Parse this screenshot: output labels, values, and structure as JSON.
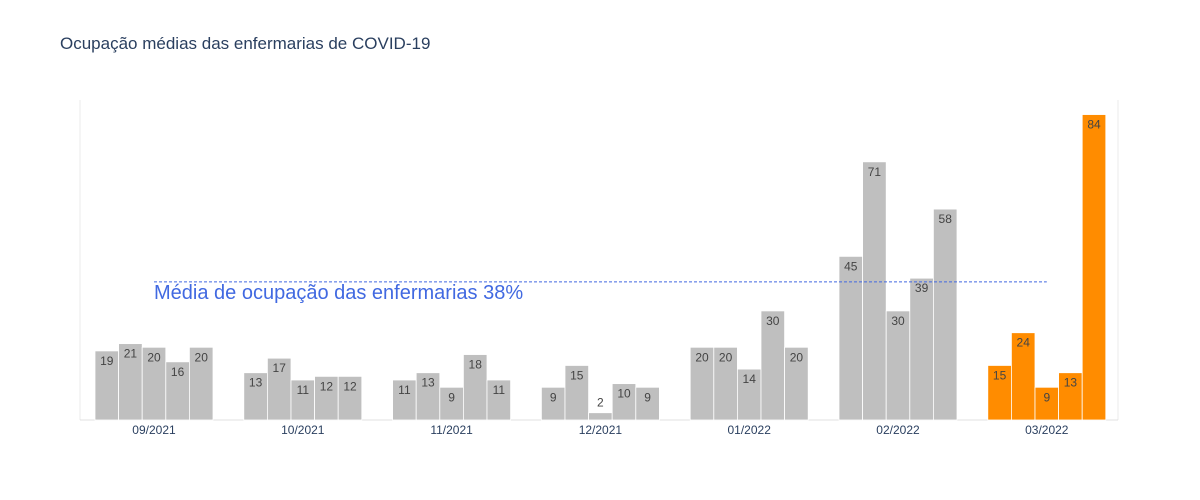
{
  "chart_data": {
    "type": "bar",
    "title": "Ocupação médias das enfermarias de COVID-19",
    "xlabel": "",
    "ylabel": "",
    "ylim": [
      0,
      88
    ],
    "categories": [
      "09/2021",
      "10/2021",
      "11/2021",
      "12/2021",
      "01/2022",
      "02/2022",
      "03/2022"
    ],
    "groups": [
      {
        "month": "09/2021",
        "values": [
          19,
          21,
          20,
          16,
          20
        ],
        "color": "#bfbfbf"
      },
      {
        "month": "10/2021",
        "values": [
          13,
          17,
          11,
          12,
          12
        ],
        "color": "#bfbfbf"
      },
      {
        "month": "11/2021",
        "values": [
          11,
          13,
          9,
          18,
          11
        ],
        "color": "#bfbfbf"
      },
      {
        "month": "12/2021",
        "values": [
          9,
          15,
          2,
          10,
          9
        ],
        "color": "#bfbfbf"
      },
      {
        "month": "01/2022",
        "values": [
          20,
          20,
          14,
          30,
          20
        ],
        "color": "#bfbfbf"
      },
      {
        "month": "02/2022",
        "values": [
          45,
          71,
          30,
          39,
          58
        ],
        "color": "#bfbfbf"
      },
      {
        "month": "03/2022",
        "values": [
          15,
          24,
          9,
          13,
          84
        ],
        "color": "#ff8c00"
      }
    ],
    "average": {
      "value": 38,
      "label": "Média de ocupação das enfermarias 38%",
      "color": "#4169e1"
    },
    "grid": false,
    "legend": "none"
  }
}
